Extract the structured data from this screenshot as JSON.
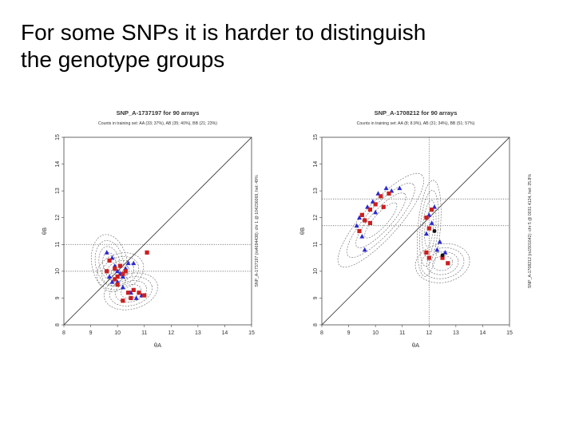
{
  "slide": {
    "title_line1": "For some SNPs it is harder to distinguish",
    "title_line2": "the genotype groups"
  },
  "colors": {
    "red": "#cc1f1f",
    "blue": "#2a2ad0",
    "black": "#111111",
    "ellipse": "#666666"
  },
  "chart_data": [
    {
      "type": "scatter",
      "title": "SNP_A-1737197 for 90 arrays",
      "subtitle": "Counts in training set: AA (33; 37%), AB (35; 40%), BB (21; 23%)",
      "xlabel": "θA",
      "ylabel": "θB",
      "right_label": "SNP_A-1737197 (rs4694438): chr 1 @ 104236069, het: 49%",
      "xlim": [
        8,
        15
      ],
      "ylim": [
        8,
        15
      ],
      "xticks": [
        "8",
        "9",
        "10",
        "11",
        "12",
        "13",
        "14",
        "15"
      ],
      "yticks": [
        "8",
        "9",
        "10",
        "11",
        "12",
        "13",
        "14",
        "15"
      ],
      "diagonal": true,
      "hlines": [
        11,
        10
      ],
      "vlines": [],
      "ellipses": [
        {
          "cx": 9.7,
          "cy": 10.3,
          "rx": 0.55,
          "ry": 0.9,
          "rot": -10
        },
        {
          "cx": 10.1,
          "cy": 10.0,
          "rx": 0.75,
          "ry": 0.55,
          "rot": -20
        },
        {
          "cx": 10.5,
          "cy": 9.25,
          "rx": 0.85,
          "ry": 0.55,
          "rot": -15
        }
      ],
      "series": [
        {
          "marker": "triangle",
          "color": "blue",
          "points": [
            [
              9.6,
              10.7
            ],
            [
              9.8,
              10.5
            ],
            [
              9.9,
              10.2
            ],
            [
              10.0,
              10.0
            ],
            [
              10.1,
              9.9
            ],
            [
              10.2,
              9.8
            ],
            [
              10.3,
              10.1
            ],
            [
              10.4,
              10.3
            ],
            [
              10.0,
              9.6
            ],
            [
              9.7,
              9.8
            ],
            [
              10.5,
              9.2
            ],
            [
              10.7,
              9.0
            ],
            [
              10.9,
              9.1
            ],
            [
              10.2,
              9.4
            ],
            [
              9.8,
              9.6
            ],
            [
              10.6,
              10.3
            ]
          ]
        },
        {
          "marker": "square",
          "color": "red",
          "points": [
            [
              9.7,
              10.4
            ],
            [
              9.9,
              10.1
            ],
            [
              10.0,
              9.8
            ],
            [
              10.1,
              10.2
            ],
            [
              10.2,
              9.9
            ],
            [
              10.3,
              10.0
            ],
            [
              10.4,
              9.2
            ],
            [
              10.5,
              9.0
            ],
            [
              10.6,
              9.3
            ],
            [
              10.8,
              9.2
            ],
            [
              11.0,
              9.1
            ],
            [
              10.2,
              8.9
            ],
            [
              9.6,
              10.0
            ],
            [
              10.0,
              9.5
            ],
            [
              11.1,
              10.7
            ],
            [
              9.9,
              9.7
            ]
          ]
        }
      ]
    },
    {
      "type": "scatter",
      "title": "SNP_A-1708212 for 90 arrays",
      "subtitle": "Counts in training set: AA (8; 8.9%), AB (31; 34%), BB (51; 57%)",
      "xlabel": "θA",
      "ylabel": "θB",
      "right_label": "SNP_A-1708212 (rs1501642): chr 5 @ 0031 4124, het: 25.8%",
      "xlim": [
        8,
        15
      ],
      "ylim": [
        8,
        15
      ],
      "xticks": [
        "8",
        "9",
        "10",
        "11",
        "12",
        "13",
        "14",
        "15"
      ],
      "yticks": [
        "8",
        "9",
        "10",
        "11",
        "12",
        "13",
        "14",
        "15"
      ],
      "diagonal": true,
      "hlines": [
        12.7,
        11.7
      ],
      "vlines": [
        12.0
      ],
      "ellipses": [
        {
          "cx": 10.2,
          "cy": 11.9,
          "rx": 1.9,
          "ry": 0.55,
          "rot": -48
        },
        {
          "cx": 12.0,
          "cy": 11.6,
          "rx": 0.35,
          "ry": 1.5,
          "rot": 5
        },
        {
          "cx": 12.5,
          "cy": 10.3,
          "rx": 0.85,
          "ry": 0.6,
          "rot": -10
        }
      ],
      "series": [
        {
          "marker": "triangle",
          "color": "blue",
          "points": [
            [
              9.4,
              12.0
            ],
            [
              9.7,
              12.4
            ],
            [
              9.9,
              12.6
            ],
            [
              10.1,
              12.9
            ],
            [
              10.4,
              13.1
            ],
            [
              10.6,
              13.0
            ],
            [
              10.9,
              13.1
            ],
            [
              9.5,
              11.3
            ],
            [
              9.3,
              11.7
            ],
            [
              10.0,
              12.2
            ],
            [
              12.0,
              12.1
            ],
            [
              12.1,
              11.8
            ],
            [
              12.2,
              12.4
            ],
            [
              11.9,
              11.4
            ],
            [
              12.3,
              10.8
            ],
            [
              12.4,
              11.1
            ],
            [
              12.6,
              10.7
            ],
            [
              9.6,
              10.8
            ]
          ]
        },
        {
          "marker": "square",
          "color": "red",
          "points": [
            [
              9.5,
              12.1
            ],
            [
              9.8,
              12.3
            ],
            [
              10.0,
              12.5
            ],
            [
              10.2,
              12.8
            ],
            [
              10.5,
              12.9
            ],
            [
              9.4,
              11.5
            ],
            [
              9.6,
              11.9
            ],
            [
              11.9,
              12.0
            ],
            [
              12.0,
              11.6
            ],
            [
              12.1,
              12.3
            ],
            [
              11.9,
              10.7
            ],
            [
              12.0,
              10.5
            ],
            [
              12.7,
              10.3
            ],
            [
              12.5,
              10.5
            ],
            [
              10.3,
              12.4
            ],
            [
              9.8,
              11.8
            ]
          ]
        },
        {
          "marker": "circle",
          "color": "black",
          "points": [
            [
              12.5,
              10.6
            ],
            [
              12.2,
              11.5
            ]
          ]
        }
      ]
    }
  ]
}
